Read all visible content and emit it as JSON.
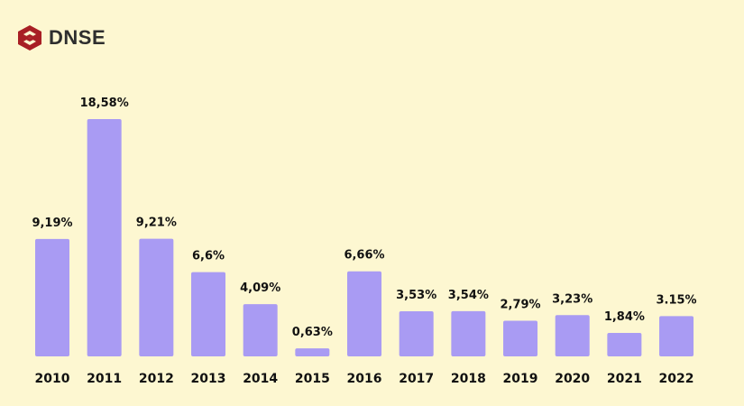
{
  "brand": {
    "name": "DNSE",
    "color": "#a81f24"
  },
  "chart_data": {
    "type": "bar",
    "title": "",
    "xlabel": "",
    "ylabel": "",
    "categories": [
      "2010",
      "2011",
      "2012",
      "2013",
      "2014",
      "2015",
      "2016",
      "2017",
      "2018",
      "2019",
      "2020",
      "2021",
      "2022"
    ],
    "values": [
      9.19,
      18.58,
      9.21,
      6.6,
      4.09,
      0.63,
      6.66,
      3.53,
      3.54,
      2.79,
      3.23,
      1.84,
      3.15
    ],
    "data_labels": [
      "9,19%",
      "18,58%",
      "9,21%",
      "6,6%",
      "4,09%",
      "0,63%",
      "6,66%",
      "3,53%",
      "3,54%",
      "2,79%",
      "3,23%",
      "1,84%",
      "3.15%"
    ],
    "ylim": [
      0,
      18.58
    ],
    "grid": false,
    "bar_color": "#a99bf3"
  }
}
